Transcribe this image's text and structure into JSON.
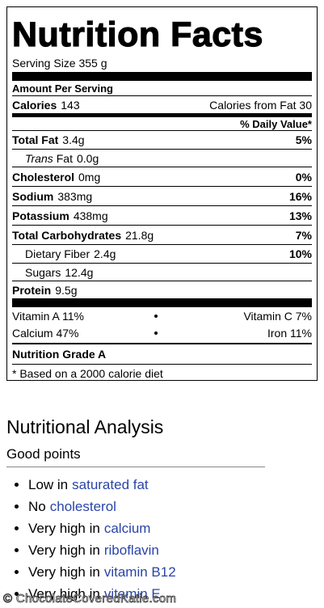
{
  "label": {
    "title": "Nutrition Facts",
    "serving": "Serving Size 355 g",
    "amount_per_serving": "Amount Per Serving",
    "calories": {
      "label": "Calories",
      "value": "143",
      "from_fat": "Calories from Fat 30"
    },
    "daily_value_header": "% Daily Value*",
    "total_fat": {
      "name": "Total Fat",
      "amount": "3.4g",
      "dv": "5%"
    },
    "trans_fat": {
      "prefix": "Trans",
      "name": "Fat",
      "amount": "0.0g"
    },
    "cholesterol": {
      "name": "Cholesterol",
      "amount": "0mg",
      "dv": "0%"
    },
    "sodium": {
      "name": "Sodium",
      "amount": "383mg",
      "dv": "16%"
    },
    "potassium": {
      "name": "Potassium",
      "amount": "438mg",
      "dv": "13%"
    },
    "total_carbohydrates": {
      "name": "Total Carbohydrates",
      "amount": "21.8g",
      "dv": "7%"
    },
    "dietary_fiber": {
      "name": "Dietary Fiber",
      "amount": "2.4g",
      "dv": "10%"
    },
    "sugars": {
      "name": "Sugars",
      "amount": "12.4g"
    },
    "protein": {
      "name": "Protein",
      "amount": "9.5g"
    },
    "vitamins": [
      [
        "Vitamin A 11%",
        "Vitamin C 7%"
      ],
      [
        "Calcium 47%",
        "Iron 11%"
      ]
    ],
    "grade": "Nutrition Grade A",
    "footnote": "* Based on a 2000 calorie diet"
  },
  "analysis": {
    "title": "Nutritional Analysis",
    "subtitle": "Good points",
    "points": [
      {
        "text": "Low in",
        "link": "saturated fat"
      },
      {
        "text": "No",
        "link": "cholesterol"
      },
      {
        "text": "Very high in",
        "link": "calcium"
      },
      {
        "text": "Very high in",
        "link": "riboflavin"
      },
      {
        "text": "Very high in",
        "link": "vitamin B12"
      },
      {
        "text": "Very high in",
        "link": "vitamin E"
      }
    ]
  },
  "watermark": "© ChocolateCoveredKatie.com"
}
